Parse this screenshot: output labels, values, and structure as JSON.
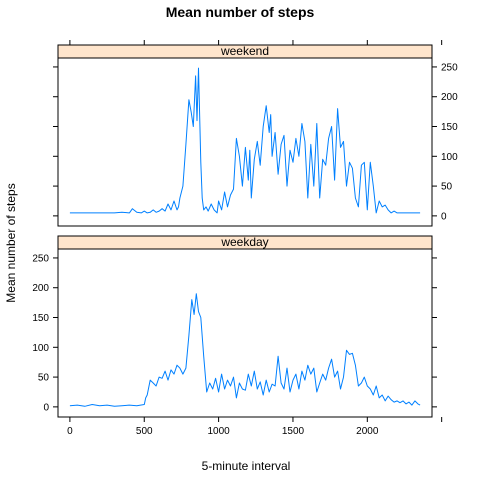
{
  "chart_data": {
    "type": "line",
    "title": "Mean number of steps",
    "xlabel": "5-minute interval",
    "ylabel": "Mean number of steps",
    "xlim": [
      -80,
      2435
    ],
    "ylim": [
      -17,
      265
    ],
    "x_ticks": [
      "0",
      "500",
      "1000",
      "1500",
      "2000"
    ],
    "y_ticks": [
      "0",
      "50",
      "100",
      "150",
      "200",
      "250"
    ],
    "colors": {
      "line": "#0080ff",
      "strip": "#ffe5cc",
      "frame": "#000000"
    },
    "panels": [
      {
        "name": "weekend",
        "series": [
          {
            "x": [
              0,
              100,
              200,
              300,
              350,
              400,
              420,
              450,
              480,
              500,
              520,
              540,
              560,
              580,
              600,
              620,
              640,
              660,
              680,
              700,
              720,
              730,
              740,
              760,
              780,
              800,
              815,
              830,
              845,
              855,
              865,
              880,
              890,
              900,
              915,
              930,
              950,
              970,
              990,
              1000,
              1020,
              1040,
              1060,
              1080,
              1100,
              1120,
              1140,
              1160,
              1180,
              1200,
              1210,
              1220,
              1240,
              1260,
              1280,
              1300,
              1320,
              1340,
              1350,
              1360,
              1380,
              1400,
              1420,
              1440,
              1460,
              1480,
              1500,
              1520,
              1540,
              1560,
              1580,
              1600,
              1620,
              1640,
              1660,
              1680,
              1700,
              1720,
              1740,
              1760,
              1780,
              1800,
              1820,
              1840,
              1860,
              1880,
              1900,
              1920,
              1940,
              1960,
              1980,
              2000,
              2020,
              2040,
              2060,
              2080,
              2100,
              2120,
              2140,
              2160,
              2180,
              2200,
              2250,
              2355
            ],
            "y": [
              5,
              5,
              5,
              5,
              6,
              5,
              12,
              6,
              5,
              8,
              5,
              6,
              10,
              6,
              8,
              12,
              8,
              20,
              10,
              25,
              10,
              15,
              30,
              50,
              120,
              195,
              175,
              150,
              235,
              160,
              248,
              90,
              30,
              10,
              15,
              8,
              20,
              10,
              5,
              25,
              10,
              40,
              15,
              35,
              45,
              130,
              100,
              50,
              115,
              60,
              110,
              30,
              95,
              125,
              85,
              150,
              185,
              140,
              170,
              100,
              140,
              70,
              120,
              135,
              50,
              110,
              90,
              130,
              100,
              155,
              125,
              30,
              120,
              50,
              155,
              30,
              95,
              85,
              130,
              150,
              60,
              180,
              115,
              125,
              50,
              90,
              80,
              30,
              15,
              85,
              90,
              10,
              90,
              50,
              5,
              25,
              15,
              18,
              10,
              5,
              8,
              5,
              5,
              5
            ]
          }
        ]
      },
      {
        "name": "weekday",
        "series": [
          {
            "x": [
              0,
              50,
              100,
              150,
              200,
              250,
              300,
              350,
              400,
              450,
              500,
              510,
              520,
              540,
              560,
              580,
              600,
              620,
              640,
              660,
              680,
              700,
              720,
              740,
              760,
              780,
              800,
              820,
              835,
              850,
              865,
              880,
              900,
              920,
              940,
              960,
              980,
              1000,
              1020,
              1040,
              1060,
              1080,
              1100,
              1120,
              1140,
              1160,
              1180,
              1200,
              1220,
              1240,
              1260,
              1280,
              1300,
              1320,
              1340,
              1360,
              1380,
              1400,
              1420,
              1440,
              1460,
              1480,
              1500,
              1520,
              1540,
              1560,
              1580,
              1600,
              1620,
              1640,
              1660,
              1680,
              1700,
              1720,
              1740,
              1760,
              1780,
              1800,
              1820,
              1840,
              1860,
              1880,
              1900,
              1920,
              1940,
              1960,
              1980,
              2000,
              2020,
              2040,
              2060,
              2080,
              2100,
              2120,
              2140,
              2160,
              2180,
              2200,
              2220,
              2240,
              2260,
              2280,
              2300,
              2320,
              2340,
              2355
            ],
            "y": [
              2,
              3,
              1,
              4,
              2,
              3,
              1,
              2,
              3,
              2,
              4,
              15,
              20,
              45,
              40,
              35,
              50,
              48,
              60,
              45,
              62,
              55,
              70,
              65,
              55,
              65,
              120,
              180,
              155,
              190,
              160,
              150,
              85,
              25,
              40,
              30,
              48,
              25,
              55,
              30,
              45,
              35,
              50,
              15,
              40,
              30,
              28,
              55,
              35,
              60,
              30,
              42,
              20,
              45,
              25,
              38,
              35,
              85,
              40,
              30,
              65,
              25,
              45,
              55,
              30,
              60,
              45,
              70,
              55,
              65,
              25,
              40,
              55,
              45,
              65,
              80,
              50,
              60,
              30,
              50,
              95,
              88,
              90,
              70,
              35,
              40,
              50,
              35,
              30,
              20,
              35,
              15,
              20,
              10,
              18,
              12,
              8,
              10,
              7,
              10,
              5,
              8,
              3,
              10,
              5,
              3
            ]
          }
        ]
      }
    ]
  }
}
